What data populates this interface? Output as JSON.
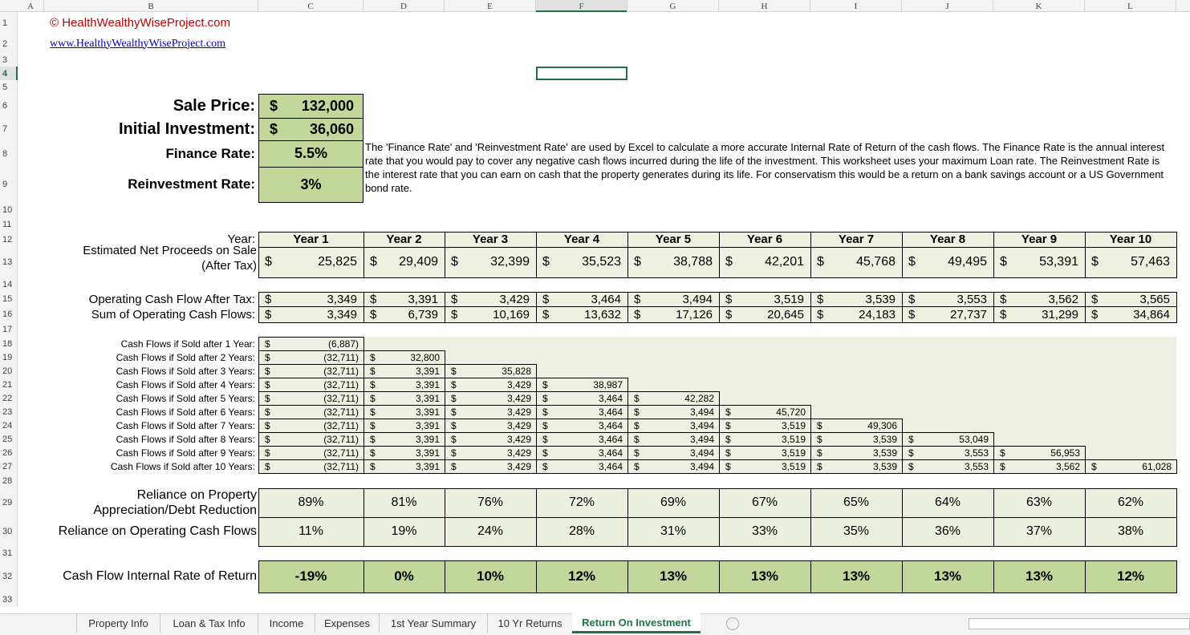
{
  "sheet": {
    "column_letters": [
      "A",
      "B",
      "C",
      "D",
      "E",
      "F",
      "G",
      "H",
      "I",
      "J",
      "K",
      "L"
    ],
    "active_column": 5,
    "row_numbers": [
      1,
      2,
      3,
      4,
      5,
      6,
      7,
      8,
      9,
      10,
      11,
      12,
      13,
      14,
      15,
      16,
      17,
      18,
      19,
      20,
      21,
      22,
      23,
      24,
      25,
      26,
      27,
      28,
      29,
      30,
      31,
      32,
      33
    ],
    "active_row": 3,
    "currency": "$",
    "header": {
      "copyright": "© HealthWealthyWiseProject.com",
      "url": "www.HealthyWealthyWiseProject.com"
    },
    "inputs": [
      {
        "label": "Sale Price:",
        "value": "132,000",
        "currency": true
      },
      {
        "label": "Initial Investment:",
        "value": "36,060",
        "currency": true
      },
      {
        "label": "Finance Rate:",
        "value": "5.5%",
        "currency": false
      },
      {
        "label": "Reinvestment Rate:",
        "value": "3%",
        "currency": false
      }
    ],
    "note": "The 'Finance Rate' and 'Reinvestment Rate' are used by Excel to calculate a more accurate Internal Rate of Return of the cash flows.  The Finance Rate is the annual interest rate that you would pay to cover any negative cash flows incurred during the life of the investment.  This worksheet uses your maximum Loan rate.  The Reinvestment Rate is the interest rate that you can earn on cash that the property generates during its life.  For conservatism this would be a return on a bank savings account or a US Government bond rate.",
    "years": {
      "label": "Year:",
      "values": [
        "Year 1",
        "Year 2",
        "Year 3",
        "Year 4",
        "Year 5",
        "Year 6",
        "Year 7",
        "Year 8",
        "Year 9",
        "Year 10"
      ]
    },
    "net_proceeds": {
      "label_lines": [
        "Estimated Net Proceeds on Sale",
        "(After Tax)"
      ],
      "values": [
        "25,825",
        "29,409",
        "32,399",
        "35,523",
        "38,788",
        "42,201",
        "45,768",
        "49,495",
        "53,391",
        "57,463"
      ]
    },
    "operating_cash_flow": {
      "label": "Operating Cash Flow After Tax:",
      "values": [
        "3,349",
        "3,391",
        "3,429",
        "3,464",
        "3,494",
        "3,519",
        "3,539",
        "3,553",
        "3,562",
        "3,565"
      ]
    },
    "sum_operating_cash_flows": {
      "label": "Sum of Operating Cash Flows:",
      "values": [
        "3,349",
        "6,739",
        "10,169",
        "13,632",
        "17,126",
        "20,645",
        "24,183",
        "27,737",
        "31,299",
        "34,864"
      ]
    },
    "cash_flows_if_sold": [
      {
        "label": "Cash Flows if Sold after 1 Year:",
        "values": [
          "(6,887)"
        ]
      },
      {
        "label": "Cash Flows if Sold after 2 Years:",
        "values": [
          "(32,711)",
          "32,800"
        ]
      },
      {
        "label": "Cash Flows if Sold after 3 Years:",
        "values": [
          "(32,711)",
          "3,391",
          "35,828"
        ]
      },
      {
        "label": "Cash Flows if Sold after 4 Years:",
        "values": [
          "(32,711)",
          "3,391",
          "3,429",
          "38,987"
        ]
      },
      {
        "label": "Cash Flows if Sold after 5 Years:",
        "values": [
          "(32,711)",
          "3,391",
          "3,429",
          "3,464",
          "42,282"
        ]
      },
      {
        "label": "Cash Flows if Sold after 6 Years:",
        "values": [
          "(32,711)",
          "3,391",
          "3,429",
          "3,464",
          "3,494",
          "45,720"
        ]
      },
      {
        "label": "Cash Flows if Sold after 7 Years:",
        "values": [
          "(32,711)",
          "3,391",
          "3,429",
          "3,464",
          "3,494",
          "3,519",
          "49,306"
        ]
      },
      {
        "label": "Cash Flows if Sold after 8 Years:",
        "values": [
          "(32,711)",
          "3,391",
          "3,429",
          "3,464",
          "3,494",
          "3,519",
          "3,539",
          "53,049"
        ]
      },
      {
        "label": "Cash Flows if Sold after 9 Years:",
        "values": [
          "(32,711)",
          "3,391",
          "3,429",
          "3,464",
          "3,494",
          "3,519",
          "3,539",
          "3,553",
          "56,953"
        ]
      },
      {
        "label": "Cash Flows if Sold after 10 Years:",
        "values": [
          "(32,711)",
          "3,391",
          "3,429",
          "3,464",
          "3,494",
          "3,519",
          "3,539",
          "3,553",
          "3,562",
          "61,028"
        ]
      }
    ],
    "reliance_property": {
      "label_lines": [
        "Reliance on Property",
        "Appreciation/Debt Reduction"
      ],
      "values": [
        "89%",
        "81%",
        "76%",
        "72%",
        "69%",
        "67%",
        "65%",
        "64%",
        "63%",
        "62%"
      ]
    },
    "reliance_operating": {
      "label": "Reliance on Operating Cash Flows",
      "values": [
        "11%",
        "19%",
        "24%",
        "28%",
        "31%",
        "33%",
        "35%",
        "36%",
        "37%",
        "38%"
      ]
    },
    "irr": {
      "label": "Cash Flow Internal Rate of Return",
      "values": [
        "-19%",
        "0%",
        "10%",
        "12%",
        "13%",
        "13%",
        "13%",
        "13%",
        "13%",
        "12%"
      ]
    },
    "tabs": [
      "Property Info",
      "Loan & Tax Info",
      "Income",
      "Expenses",
      "1st Year Summary",
      "10 Yr Returns",
      "Return On Investment"
    ],
    "active_tab": 6
  }
}
